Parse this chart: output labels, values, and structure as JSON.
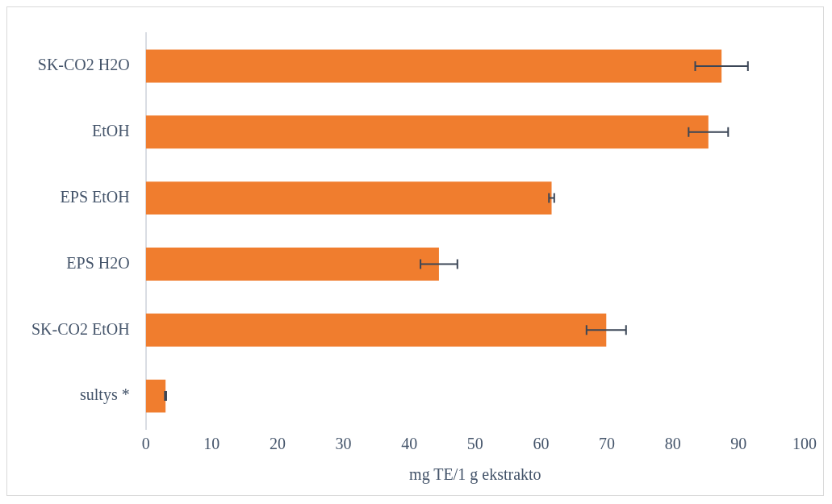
{
  "chart_data": {
    "type": "bar",
    "orientation": "horizontal",
    "xlabel": "mg TE/1 g ekstrakto",
    "categories": [
      "SK-CO2 H2O",
      "EtOH",
      "EPS EtOH",
      "EPS H2O",
      "SK-CO2 EtOH",
      "sultys *"
    ],
    "values": [
      87.4,
      85.4,
      61.6,
      44.5,
      69.9,
      3.0
    ],
    "errors": [
      4.0,
      3.0,
      0.4,
      2.8,
      3.0,
      0.1
    ],
    "color": "#f07d2e",
    "xlim": [
      0,
      100
    ],
    "xticks": [
      0,
      10,
      20,
      30,
      40,
      50,
      60,
      70,
      80,
      90,
      100
    ],
    "grid": false,
    "legend": false
  }
}
